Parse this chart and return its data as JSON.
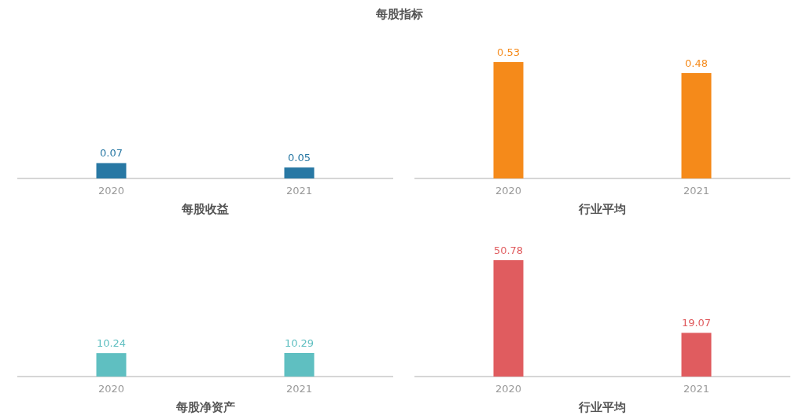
{
  "chart_data": [
    {
      "type": "bar",
      "title": "每股指标",
      "xlabel": "每股收益",
      "categories": [
        "2020",
        "2021"
      ],
      "values": [
        0.07,
        0.05
      ],
      "color": "#2878a4",
      "data_labels": true
    },
    {
      "type": "bar",
      "xlabel": "行业平均",
      "categories": [
        "2020",
        "2021"
      ],
      "values": [
        0.53,
        0.48
      ],
      "color": "#f58a1a",
      "data_labels": true
    },
    {
      "type": "bar",
      "xlabel": "每股净资产",
      "categories": [
        "2020",
        "2021"
      ],
      "values": [
        10.24,
        10.29
      ],
      "color": "#5fbfc1",
      "data_labels": true
    },
    {
      "type": "bar",
      "xlabel": "行业平均",
      "categories": [
        "2020",
        "2021"
      ],
      "values": [
        50.78,
        19.07
      ],
      "color": "#e05c5f",
      "data_labels": true
    }
  ]
}
